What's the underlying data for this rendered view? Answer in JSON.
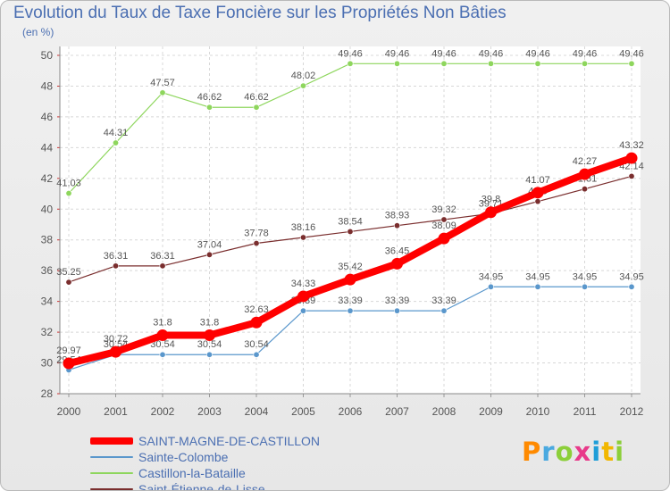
{
  "header": {
    "title": "Evolution du Taux de Taxe Foncière sur les Propriétés Non Bâties",
    "unit": "(en %)"
  },
  "logo": {
    "letters": [
      "P",
      "r",
      "o",
      "x",
      "i",
      "t",
      "i"
    ],
    "colors": [
      "#ff8a00",
      "#4aa9e0",
      "#8ccf3a",
      "#e83a8a",
      "#1f9ed8",
      "#f2b700",
      "#8ccf3a"
    ]
  },
  "chart_data": {
    "type": "line",
    "x": [
      "2000",
      "2001",
      "2002",
      "2003",
      "2004",
      "2005",
      "2006",
      "2007",
      "2008",
      "2009",
      "2010",
      "2011",
      "2012"
    ],
    "yticks": [
      "28",
      "30",
      "32",
      "34",
      "36",
      "38",
      "40",
      "42",
      "44",
      "46",
      "48",
      "50"
    ],
    "ylim": [
      28,
      50
    ],
    "grid": true,
    "legend_position": "bottom-left",
    "series": [
      {
        "name": "SAINT-MAGNE-DE-CASTILLON",
        "color": "#ff0000",
        "values": [
          29.97,
          30.72,
          31.8,
          31.8,
          32.63,
          34.33,
          35.42,
          36.45,
          38.09,
          39.8,
          41.07,
          42.27,
          43.32
        ],
        "labels": [
          "29.97",
          "30.72",
          "31.8",
          "31.8",
          "32.63",
          "34.33",
          "35.42",
          "36.45",
          "38.09",
          "39.8",
          "41.07",
          "42.27",
          "43.32"
        ]
      },
      {
        "name": "Sainte-Colombe",
        "color": "#5a97cc",
        "values": [
          29.54,
          30.54,
          30.54,
          30.54,
          30.54,
          33.39,
          33.39,
          33.39,
          33.39,
          34.95,
          34.95,
          34.95,
          34.95
        ],
        "labels": [
          "29.54",
          "30.54",
          "30.54",
          "30.54",
          "30.54",
          "33.39",
          "33.39",
          "33.39",
          "33.39",
          "34.95",
          "34.95",
          "34.95",
          "34.95"
        ]
      },
      {
        "name": "Castillon-la-Bataille",
        "color": "#8ed65d",
        "values": [
          41.03,
          44.31,
          47.57,
          46.62,
          46.62,
          48.02,
          49.46,
          49.46,
          49.46,
          49.46,
          49.46,
          49.46,
          49.46
        ],
        "labels": [
          "41.03",
          "44.31",
          "47.57",
          "46.62",
          "46.62",
          "48.02",
          "49.46",
          "49.46",
          "49.46",
          "49.46",
          "49.46",
          "49.46",
          "49.46"
        ]
      },
      {
        "name": "Saint-Étienne-de-Lisse",
        "color": "#7a2e2e",
        "values": [
          35.25,
          36.31,
          36.31,
          37.04,
          37.78,
          38.16,
          38.54,
          38.93,
          39.32,
          39.71,
          40.5,
          41.31,
          42.14
        ],
        "labels": [
          "35.25",
          "36.31",
          "36.31",
          "37.04",
          "37.78",
          "38.16",
          "38.54",
          "38.93",
          "39.32",
          "39.71",
          "40.5",
          "41.31",
          "42.14"
        ]
      }
    ]
  }
}
